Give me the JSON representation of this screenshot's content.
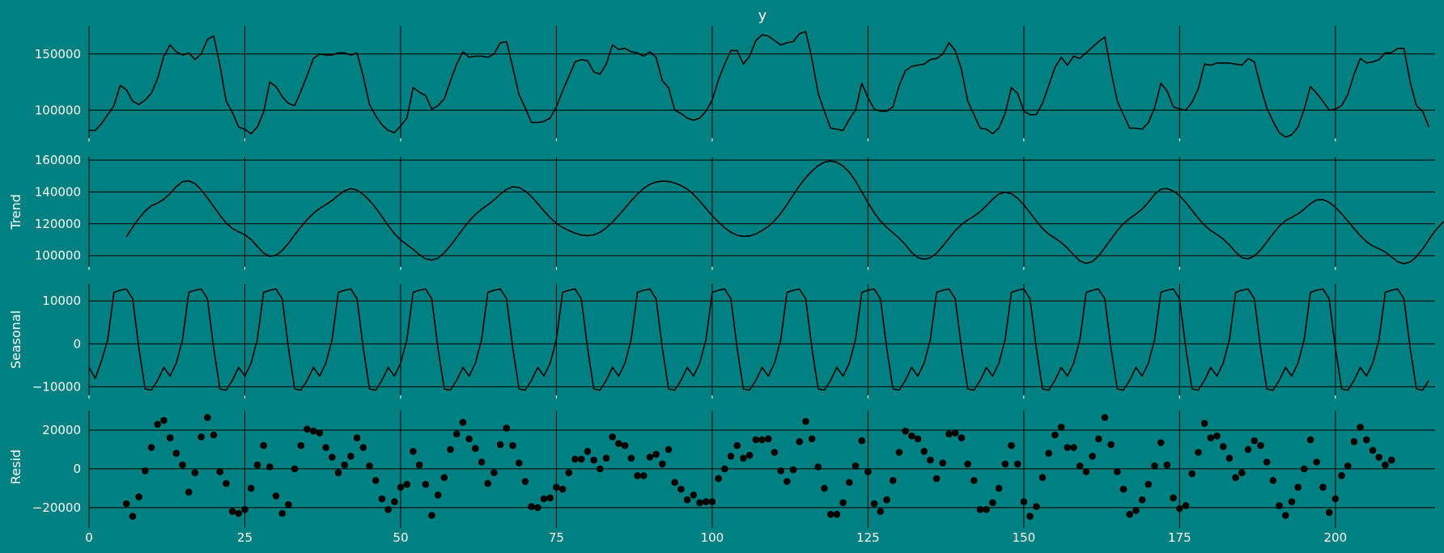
{
  "chart_data": {
    "type": "line",
    "title": "y",
    "xlim": [
      0,
      216
    ],
    "x_ticks": [
      0,
      25,
      50,
      75,
      100,
      125,
      150,
      175,
      200
    ],
    "grid": true,
    "colors": {
      "background": "#008080",
      "line": "#000000",
      "text": "#ffffff"
    },
    "panels": [
      {
        "name": "observed",
        "ylabel": "",
        "plot": "line",
        "ylim": [
          75000,
          175000
        ],
        "yticks": [
          100000,
          150000
        ],
        "start_x": 0,
        "y": [
          82000,
          82000,
          88000,
          96000,
          104000,
          122000,
          118000,
          108000,
          105000,
          109000,
          115000,
          128000,
          148000,
          158000,
          152000,
          149000,
          151000,
          145000,
          150000,
          163000,
          166000,
          140000,
          108000,
          98000,
          85000,
          83000,
          79000,
          85000,
          98000,
          125000,
          121000,
          112000,
          106000,
          104000,
          117000,
          131000,
          146000,
          150000,
          149000,
          149000,
          151000,
          151000,
          149000,
          151000,
          130000,
          105000,
          95000,
          87000,
          82000,
          80000,
          86000,
          93000,
          120000,
          116000,
          113000,
          101000,
          104000,
          110000,
          126000,
          141000,
          152000,
          147000,
          148000,
          148000,
          147000,
          150000,
          160000,
          161000,
          138000,
          114000,
          102000,
          89000,
          89000,
          90000,
          93000,
          103000,
          117000,
          130000,
          143000,
          145000,
          144000,
          134000,
          132000,
          141000,
          158000,
          154000,
          155000,
          152000,
          151000,
          148000,
          152000,
          147000,
          126000,
          120000,
          100000,
          97000,
          93000,
          91000,
          93000,
          99000,
          109000,
          127000,
          141000,
          153000,
          153000,
          141000,
          148000,
          162000,
          167000,
          166000,
          162000,
          158000,
          160000,
          161000,
          168000,
          170000,
          146000,
          115000,
          99000,
          84000,
          83000,
          82000,
          92000,
          100000,
          124000,
          111000,
          101000,
          99000,
          99000,
          103000,
          122000,
          135000,
          139000,
          140000,
          141000,
          145000,
          146000,
          150000,
          160000,
          153000,
          136000,
          108000,
          96000,
          84000,
          83000,
          79000,
          84000,
          97000,
          120000,
          115000,
          99000,
          96000,
          96000,
          106000,
          122000,
          138000,
          147000,
          140000,
          148000,
          146000,
          151000,
          156000,
          161000,
          165000,
          135000,
          108000,
          96000,
          84000,
          84000,
          83000,
          89000,
          102000,
          124000,
          117000,
          103000,
          101000,
          100000,
          107000,
          119000,
          141000,
          140000,
          142000,
          142000,
          142000,
          141000,
          140000,
          146000,
          143000,
          121000,
          102000,
          90000,
          80000,
          76000,
          78000,
          85000,
          101000,
          121000,
          115000,
          108000,
          100000,
          101000,
          104000,
          114000,
          132000,
          146000,
          142000,
          143000,
          145000,
          151000,
          151000,
          155000,
          155000,
          125000,
          104000,
          99000,
          85000
        ]
      },
      {
        "name": "trend",
        "ylabel": "Trend",
        "plot": "line",
        "ylim": [
          93000,
          162000
        ],
        "yticks": [
          100000,
          120000,
          140000,
          160000
        ],
        "start_x": 6,
        "y": [
          111818,
          117867,
          123424,
          128032,
          131276,
          132974,
          135433,
          139036,
          143320,
          146398,
          146968,
          145215,
          141281,
          136211,
          130772,
          125386,
          120472,
          117047,
          114933,
          113145,
          110143,
          105805,
          101612,
          99520,
          100183,
          103227,
          107815,
          113041,
          117996,
          122614,
          126566,
          129578,
          131984,
          134661,
          137828,
          140761,
          142070,
          141189,
          138474,
          134589,
          129926,
          124571,
          118868,
          113761,
          109916,
          106906,
          103885,
          100629,
          98066,
          97226,
          98497,
          101727,
          106278,
          111493,
          116727,
          121606,
          125844,
          129144,
          131910,
          135003,
          138549,
          141659,
          143183,
          142754,
          140569,
          137084,
          132749,
          128083,
          123791,
          120291,
          117708,
          115749,
          114114,
          112928,
          112519,
          113018,
          114647,
          117441,
          121051,
          125254,
          129844,
          134395,
          138633,
          142267,
          144767,
          146205,
          146837,
          146596,
          145557,
          143997,
          141755,
          138458,
          134267,
          129686,
          125132,
          121045,
          117493,
          114658,
          112854,
          112118,
          112325,
          113591,
          115712,
          118366,
          121904,
          126535,
          132070,
          138076,
          143906,
          148854,
          153061,
          156477,
          158662,
          159380,
          158552,
          156231,
          152370,
          146809,
          140087,
          133189,
          126907,
          121743,
          117762,
          114412,
          110930,
          106848,
          102099,
          98802,
          97719,
          98622,
          101592,
          106020,
          110932,
          115678,
          119574,
          122448,
          124753,
          127615,
          131380,
          135470,
          138701,
          139842,
          138861,
          136035,
          131851,
          126885,
          121703,
          116996,
          113519,
          110939,
          108250,
          104722,
          100382,
          96641,
          95081,
          96262,
          99845,
          104934,
          110412,
          115637,
          120106,
          123390,
          126101,
          129271,
          133485,
          138535,
          141731,
          142096,
          140592,
          137583,
          133324,
          128452,
          123499,
          119019,
          115767,
          113209,
          110401,
          106711,
          102244,
          98797,
          98030,
          99775,
          103540,
          108555,
          113779,
          118567,
          121972,
          124065,
          126192,
          129162,
          132682,
          134941,
          135166,
          133512,
          130336,
          126220,
          121667,
          116993,
          112546,
          108705,
          106028,
          104317,
          102225,
          99309,
          96239,
          94906,
          96050,
          99312,
          104229,
          109977,
          115516,
          119960,
          123182,
          126231,
          130126,
          134631,
          138132,
          139045,
          137970,
          134986
        ]
      },
      {
        "name": "seasonal",
        "ylabel": "Seasonal",
        "plot": "line",
        "ylim": [
          -12000,
          14000
        ],
        "yticks": [
          -10000,
          0,
          10000
        ],
        "start_x": 0,
        "y": [
          -5500,
          -8000,
          -4000,
          1000,
          12000,
          12500,
          12800,
          10500,
          -1000,
          -10500,
          -10800,
          -8500,
          -5500,
          -7500,
          -4500,
          1000,
          12000,
          12500,
          12800,
          10500,
          -1000,
          -10500,
          -10800,
          -8500,
          -5500,
          -7500,
          -4500,
          1000,
          12000,
          12500,
          12800,
          10500,
          -1000,
          -10500,
          -10800,
          -8500,
          -5500,
          -7500,
          -4500,
          1000,
          12000,
          12500,
          12800,
          10500,
          -1000,
          -10500,
          -10800,
          -8500,
          -5500,
          -7500,
          -4500,
          1000,
          12000,
          12500,
          12800,
          10500,
          -1000,
          -10500,
          -10800,
          -8500,
          -5500,
          -7500,
          -4500,
          1000,
          12000,
          12500,
          12800,
          10500,
          -1000,
          -10500,
          -10800,
          -8500,
          -5500,
          -7500,
          -4500,
          1000,
          12000,
          12500,
          12800,
          10500,
          -1000,
          -10500,
          -10800,
          -8500,
          -5500,
          -7500,
          -4500,
          1000,
          12000,
          12500,
          12800,
          10500,
          -1000,
          -10500,
          -10800,
          -8500,
          -5500,
          -7500,
          -4500,
          1000,
          12000,
          12500,
          12800,
          10500,
          -1000,
          -10500,
          -10800,
          -8500,
          -5500,
          -7500,
          -4500,
          1000,
          12000,
          12500,
          12800,
          10500,
          -1000,
          -10500,
          -10800,
          -8500,
          -5500,
          -7500,
          -4500,
          1000,
          12000,
          12500,
          12800,
          10500,
          -1000,
          -10500,
          -10800,
          -8500,
          -5500,
          -7500,
          -4500,
          1000,
          12000,
          12500,
          12800,
          10500,
          -1000,
          -10500,
          -10800,
          -8500,
          -5500,
          -7500,
          -4500,
          1000,
          12000,
          12500,
          12800,
          10500,
          -1000,
          -10500,
          -10800,
          -8500,
          -5500,
          -7500,
          -4500,
          1000,
          12000,
          12500,
          12800,
          10500,
          -1000,
          -10500,
          -10800,
          -8500,
          -5500,
          -7500,
          -4500,
          1000,
          12000,
          12500,
          12800,
          10500,
          -1000,
          -10500,
          -10800,
          -8500,
          -5500,
          -7500,
          -4500,
          1000,
          12000,
          12500,
          12800,
          10500,
          -1000,
          -10500,
          -10800,
          -8500,
          -5500,
          -7500,
          -4500,
          1000,
          12000,
          12500,
          12800,
          10500,
          -1000,
          -10500,
          -10800,
          -8500,
          -5500,
          -7500,
          -4500,
          1000,
          12000,
          12500,
          12800,
          10500,
          -1000,
          -10500,
          -10800,
          -8500
        ]
      },
      {
        "name": "resid",
        "ylabel": "Resid",
        "plot": "scatter",
        "ylim": [
          -28000,
          30000
        ],
        "yticks": [
          -20000,
          0,
          20000
        ],
        "start_x": 6,
        "y": [
          -18000,
          -24500,
          -14500,
          -1000,
          11000,
          23000,
          25000,
          16000,
          8000,
          2000,
          -12000,
          -2000,
          16500,
          26500,
          17500,
          -1500,
          -7500,
          -22000,
          -23000,
          -21000,
          -10000,
          2000,
          12000,
          1000,
          -14000,
          -23000,
          -18500,
          0,
          12000,
          20500,
          19500,
          18500,
          11000,
          6000,
          -2000,
          2000,
          6500,
          16000,
          11000,
          1500,
          -6000,
          -15500,
          -21000,
          -17000,
          -9500,
          -8000,
          9000,
          2000,
          -8000,
          -24000,
          -13500,
          -4500,
          10000,
          18000,
          24000,
          15500,
          10500,
          3500,
          -7500,
          -2000,
          12500,
          21000,
          12000,
          3000,
          -6500,
          -19500,
          -20000,
          -15500,
          -15000,
          -9500,
          -10500,
          -2000,
          5000,
          5000,
          9000,
          4500,
          0,
          5500,
          16500,
          13000,
          12000,
          5500,
          -3500,
          -3500,
          6000,
          7500,
          2500,
          10000,
          -7000,
          -10500,
          -16000,
          -13500,
          -17500,
          -17000,
          -17000,
          -5000,
          0,
          6500,
          12000,
          5500,
          7000,
          15000,
          15000,
          15500,
          8500,
          -1000,
          -6500,
          -500,
          14000,
          24500,
          15500,
          1000,
          -10000,
          -23500,
          -23500,
          -17500,
          -7000,
          1500,
          14500,
          -1500,
          -18000,
          -22000,
          -16000,
          -6000,
          8500,
          19500,
          17000,
          15500,
          9000,
          4500,
          -5000,
          3000,
          18000,
          18500,
          16000,
          2500,
          -6000,
          -21000,
          -21000,
          -17500,
          -10000,
          2500,
          12000,
          2500,
          -17000,
          -24500,
          -19500,
          -4500,
          8000,
          17500,
          21500,
          11000,
          11000,
          1500,
          -1500,
          6500,
          15500,
          26500,
          12500,
          -1500,
          -10500,
          -23500,
          -21500,
          -16000,
          -8000,
          1500,
          13500,
          2000,
          -15000,
          -20500,
          -19000,
          -2500,
          8500,
          23500,
          16000,
          17000,
          11500,
          5500,
          -4500,
          -2000,
          10000,
          14500,
          12000,
          3500,
          -6000,
          -19000,
          -24000,
          -17000,
          -9500,
          0,
          15000,
          3500,
          -9500,
          -22500,
          -15500,
          -3500,
          1500,
          14000,
          21500,
          15000,
          9500,
          6000,
          2000,
          4500
        ]
      }
    ]
  }
}
